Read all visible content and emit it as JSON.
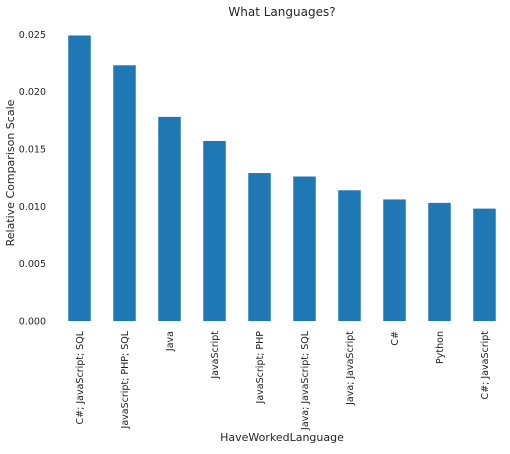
{
  "chart_data": {
    "type": "bar",
    "title": "What Languages?",
    "xlabel": "HaveWorkedLanguage",
    "ylabel": "Relative Comparison Scale",
    "categories": [
      "C#; JavaScript; SQL",
      "JavaScript; PHP; SQL",
      "Java",
      "JavaScript",
      "JavaScript; PHP",
      "Java; JavaScript; SQL",
      "Java; JavaScript",
      "C#",
      "Python",
      "C#; JavaScript"
    ],
    "values": [
      0.0249,
      0.0223,
      0.0178,
      0.0157,
      0.0129,
      0.0126,
      0.0114,
      0.0106,
      0.0103,
      0.0098
    ],
    "ylim": [
      0,
      0.0259
    ],
    "yticks": [
      "0.000",
      "0.005",
      "0.010",
      "0.015",
      "0.020",
      "0.025"
    ],
    "ytick_values": [
      0,
      0.005,
      0.01,
      0.015,
      0.02,
      0.025
    ],
    "grid": false,
    "bar_color": "#1f77b4"
  }
}
